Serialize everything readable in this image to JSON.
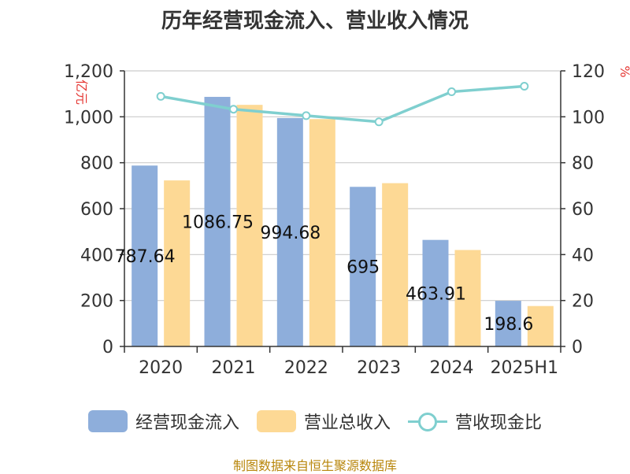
{
  "title": "历年经营现金流入、营业收入情况",
  "source_text": "制图数据来自恒生聚源数据库",
  "chart_data": {
    "type": "bar",
    "categories": [
      "2020",
      "2021",
      "2022",
      "2023",
      "2024",
      "2025H1"
    ],
    "y_left": {
      "unit_label": "亿元",
      "ylim": [
        0,
        1200
      ],
      "ticks": [
        "0",
        "200",
        "400",
        "600",
        "800",
        "1,000",
        "1,200"
      ]
    },
    "y_right": {
      "unit_label": "%",
      "ylim": [
        0,
        120
      ],
      "ticks": [
        "0",
        "20",
        "40",
        "60",
        "80",
        "100",
        "120"
      ]
    },
    "series": [
      {
        "name": "经营现金流入",
        "kind": "bar",
        "axis": "left",
        "color": "#8eaedb",
        "values": [
          787.64,
          1086.75,
          994.68,
          695,
          463.91,
          198.6
        ]
      },
      {
        "name": "营业总收入",
        "kind": "bar",
        "axis": "left",
        "color": "#fdd995",
        "values": [
          723,
          1052,
          990,
          711,
          420,
          176
        ]
      },
      {
        "name": "营收现金比",
        "kind": "line",
        "axis": "right",
        "color": "#7fcfcf",
        "values": [
          108.9,
          103.3,
          100.5,
          97.8,
          110.9,
          113.3
        ]
      }
    ],
    "data_labels": [
      "787.64",
      "1086.75",
      "994.68",
      "695",
      "463.91",
      "198.6"
    ],
    "grid": true,
    "legend_position": "bottom"
  }
}
